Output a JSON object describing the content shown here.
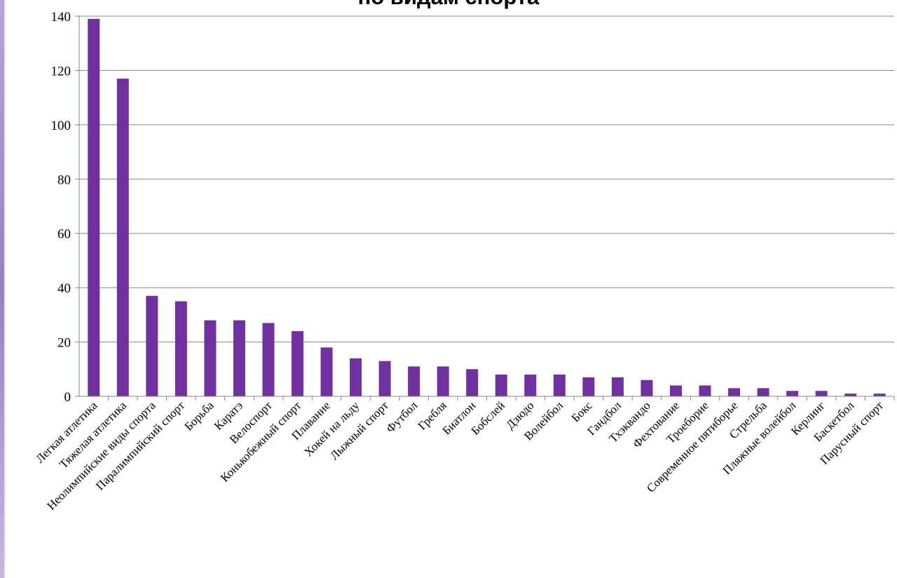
{
  "chart_data": {
    "type": "bar",
    "title": "по видам спорта",
    "xlabel": "",
    "ylabel": "",
    "ylim": [
      0,
      140
    ],
    "yticks": [
      "0",
      "20",
      "40",
      "60",
      "80",
      "100",
      "120",
      "140"
    ],
    "grid": true,
    "legend": "none",
    "categories": [
      "Легкая атлетика",
      "Тяжелая атлетика",
      "Неолимпийские виды спорта",
      "Паралимпийский спорт",
      "Борьба",
      "Каратэ",
      "Велоспорт",
      "Конькобежный спорт",
      "Плавание",
      "Хокей на льду",
      "Лыжный спорт",
      "Футбол",
      "Гребля",
      "Биатлон",
      "Бобслей",
      "Дзюдо",
      "Волейбол",
      "Бокс",
      "Гандбол",
      "Тхэквандо",
      "Фехтование",
      "Троеборие",
      "Современное пятиборье",
      "Стрельба",
      "Пляжные волейбол",
      "Керлинг",
      "Баскетбол",
      "Парусный спорт"
    ],
    "values": [
      139,
      117,
      37,
      35,
      28,
      28,
      27,
      24,
      18,
      14,
      13,
      11,
      11,
      10,
      8,
      8,
      8,
      7,
      7,
      6,
      4,
      4,
      3,
      3,
      2,
      2,
      1,
      1
    ]
  },
  "colors": {
    "bar": "#7030a0",
    "gridline": "#868686",
    "axis": "#868686",
    "accent": "#9a7fc4"
  }
}
